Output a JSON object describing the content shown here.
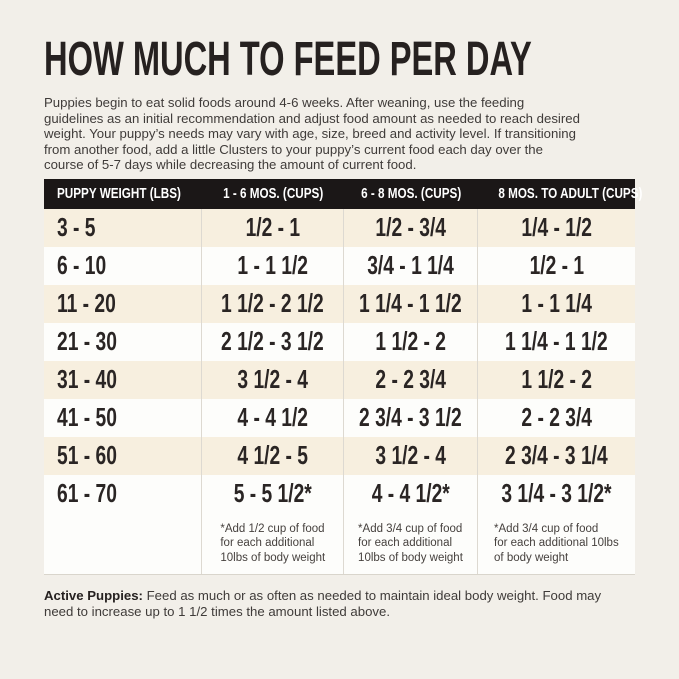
{
  "page": {
    "title": "HOW MUCH TO FEED PER DAY",
    "intro": "Puppies begin to eat solid foods around 4-6 weeks. After weaning, use the feeding\nguidelines as an initial recommendation and adjust food amount as needed to reach desired\nweight. Your puppy’s needs may vary with age, size, breed and activity level. If transitioning\nfrom another food, add a little Clusters to your puppy’s current food each day over the\ncourse of 5-7 days while decreasing the amount of current food.",
    "note_label": "Active Puppies:",
    "note_text": "Feed as much or as often as needed to maintain ideal body weight. Food may\nneed to increase up to 1 1/2 times the amount listed above."
  },
  "table": {
    "headers": [
      "PUPPY WEIGHT (LBS)",
      "1 - 6 MOS. (CUPS)",
      "6 - 8 MOS. (CUPS)",
      "8 MOS. TO ADULT (CUPS)"
    ],
    "rows": [
      {
        "cells": [
          "3 - 5",
          "1/2 - 1",
          "1/2 - 3/4",
          "1/4 - 1/2"
        ]
      },
      {
        "cells": [
          "6 - 10",
          "1 - 1 1/2",
          "3/4 - 1 1/4",
          "1/2 - 1"
        ]
      },
      {
        "cells": [
          "11 - 20",
          "1 1/2 - 2 1/2",
          "1 1/4 - 1 1/2",
          "1 - 1 1/4"
        ]
      },
      {
        "cells": [
          "21 - 30",
          "2 1/2 - 3 1/2",
          "1 1/2 - 2",
          "1 1/4 - 1 1/2"
        ]
      },
      {
        "cells": [
          "31 - 40",
          "3 1/2 - 4",
          "2 - 2 3/4",
          "1 1/2 - 2"
        ]
      },
      {
        "cells": [
          "41 - 50",
          "4 - 4 1/2",
          "2 3/4 - 3 1/2",
          "2 - 2 3/4"
        ]
      },
      {
        "cells": [
          "51 - 60",
          "4 1/2 - 5",
          "3 1/2 - 4",
          "2 3/4 - 3 1/4"
        ]
      },
      {
        "cells": [
          "61 - 70",
          "5 - 5 1/2*",
          "4 - 4 1/2*",
          "3 1/4 - 3 1/2*"
        ]
      }
    ],
    "footnotes": [
      "*Add 1/2 cup of food\nfor each additional\n10lbs of body weight",
      "*Add 3/4 cup of food\nfor each additional\n10lbs of body weight",
      "*Add 3/4 cup of food\nfor each additional 10lbs\nof body weight"
    ]
  },
  "colors": {
    "page_bg": "#f2efe9",
    "row_beige": "#f7efdf",
    "row_white": "#fdfdfb",
    "header_bg": "#1b1717",
    "header_text": "#ffffff",
    "title_text": "#262120",
    "body_text": "#3f3b39",
    "divider": "#ddd9d1"
  }
}
